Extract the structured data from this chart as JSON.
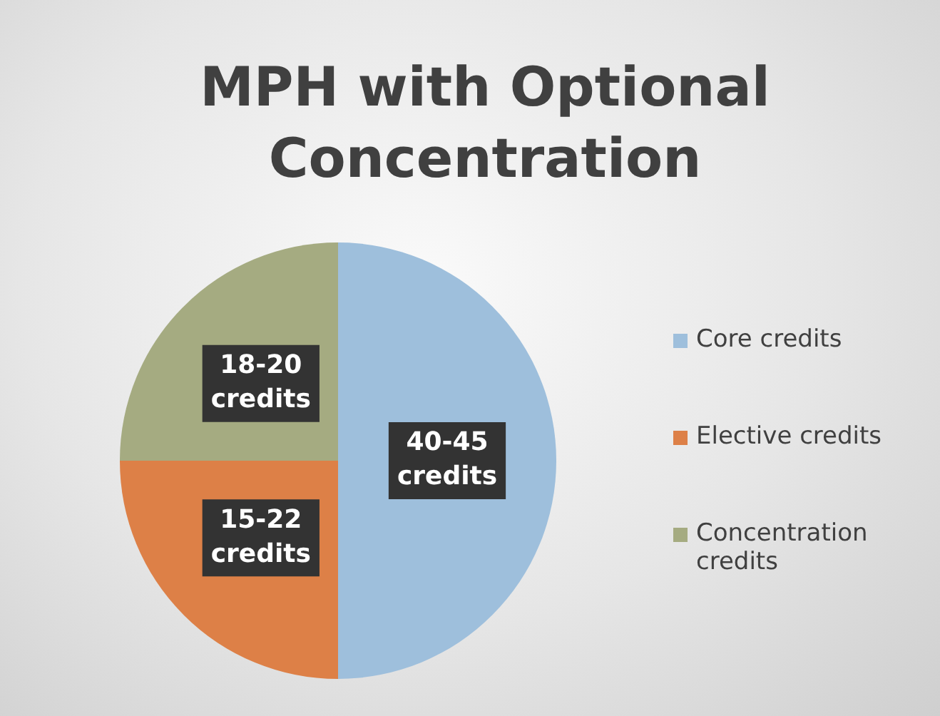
{
  "chart_data": {
    "type": "pie",
    "title": "MPH with Optional Concentration",
    "categories": [
      "Core credits",
      "Elective credits",
      "Concentration credits"
    ],
    "values": [
      50,
      25,
      25
    ],
    "colors": [
      "#9ebfdc",
      "#dd8047",
      "#a5ab81"
    ],
    "value_labels": [
      "40-45 credits",
      "15-22 credits",
      "18-20 credits"
    ],
    "legend": "right"
  }
}
